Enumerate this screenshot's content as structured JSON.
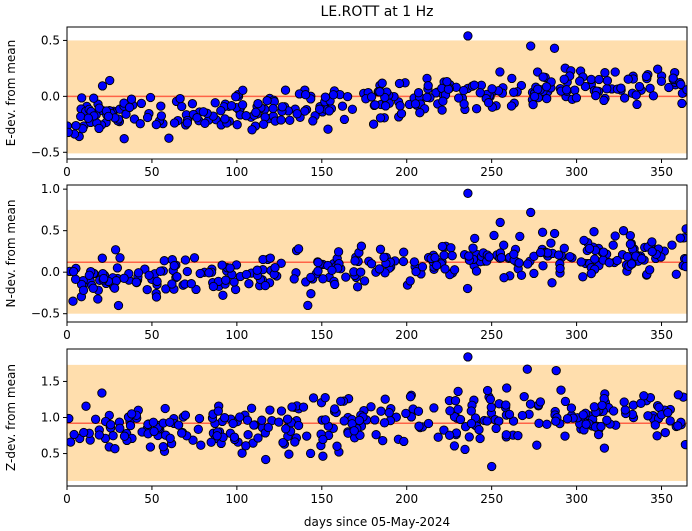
{
  "title": "LE.ROTT at 1 Hz",
  "xlabel": "days since 05-May-2024",
  "colors": {
    "band": "#ffdead",
    "mean_line": "#ff6347",
    "point_fill": "#0000ff",
    "point_edge": "#000000"
  },
  "chart_data": [
    {
      "type": "scatter",
      "ylabel": "E-dev. from mean",
      "xlim": [
        0,
        365
      ],
      "ylim": [
        -0.56,
        0.62
      ],
      "xticks": [
        "0",
        "50",
        "100",
        "150",
        "200",
        "250",
        "300",
        "350"
      ],
      "yticks": [
        "-0.5",
        "0.0",
        "0.5"
      ],
      "band": [
        -0.51,
        0.5
      ],
      "mean": 0.0,
      "seed": 11,
      "n_points": 330,
      "trend_start": -0.2,
      "trend_end": 0.12,
      "spread": 0.09,
      "highlight": [
        [
          236,
          0.54
        ],
        [
          273,
          0.45
        ],
        [
          287,
          0.43
        ]
      ]
    },
    {
      "type": "scatter",
      "ylabel": "N-dev. from mean",
      "xlim": [
        0,
        365
      ],
      "ylim": [
        -0.6,
        1.05
      ],
      "xticks": [
        "0",
        "50",
        "100",
        "150",
        "200",
        "250",
        "300",
        "350"
      ],
      "yticks": [
        "-0.5",
        "0.0",
        "0.5",
        "1.0"
      ],
      "band": [
        -0.5,
        0.75
      ],
      "mean": 0.12,
      "seed": 23,
      "n_points": 330,
      "trend_start": -0.1,
      "trend_end": 0.25,
      "spread": 0.12,
      "highlight": [
        [
          236,
          0.95
        ],
        [
          273,
          0.72
        ],
        [
          255,
          0.6
        ]
      ]
    },
    {
      "type": "scatter",
      "ylabel": "Z-dev. from mean",
      "xlim": [
        0,
        365
      ],
      "ylim": [
        0.05,
        1.95
      ],
      "xticks": [
        "0",
        "50",
        "100",
        "150",
        "200",
        "250",
        "300",
        "350"
      ],
      "yticks": [
        "0.5",
        "1.0",
        "1.5"
      ],
      "band": [
        0.12,
        1.73
      ],
      "mean": 0.92,
      "seed": 37,
      "n_points": 330,
      "trend_start": 0.78,
      "trend_end": 1.05,
      "spread": 0.18,
      "highlight": [
        [
          236,
          1.84
        ],
        [
          271,
          1.67
        ],
        [
          288,
          1.65
        ],
        [
          250,
          0.32
        ]
      ]
    }
  ]
}
